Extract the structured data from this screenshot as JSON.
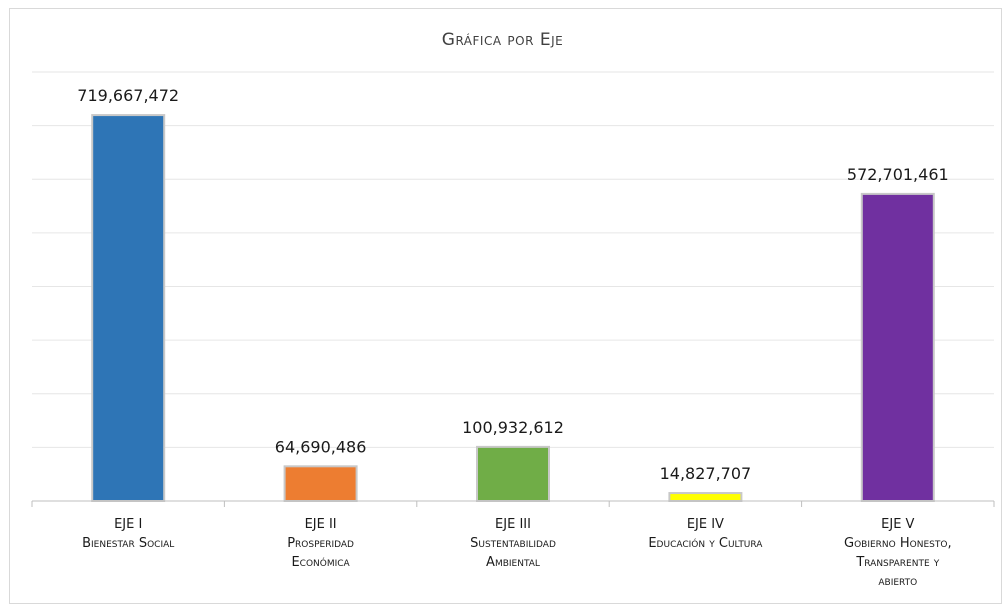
{
  "chart_data": {
    "type": "bar",
    "title": "Gráfica por Eje",
    "categories": [
      [
        "EJE I",
        "Bienestar Social"
      ],
      [
        "EJE II",
        "Prosperidad",
        "Económica"
      ],
      [
        "EJE III",
        "Sustentabilidad",
        "Ambiental"
      ],
      [
        "EJE IV",
        "Educación y Cultura"
      ],
      [
        "EJE V",
        "Gobierno Honesto,",
        "Transparente y",
        "abierto"
      ]
    ],
    "values": [
      719667472,
      64690486,
      100932612,
      14827707,
      572701461
    ],
    "value_labels": [
      "719,667,472",
      "64,690,486",
      "100,932,612",
      "14,827,707",
      "572,701,461"
    ],
    "colors": [
      "#2e75b6",
      "#ed7d31",
      "#70ad47",
      "#ffff00",
      "#7030a0"
    ],
    "ylim": [
      0,
      800000000
    ],
    "grid": true,
    "xlabel": "",
    "ylabel": ""
  }
}
